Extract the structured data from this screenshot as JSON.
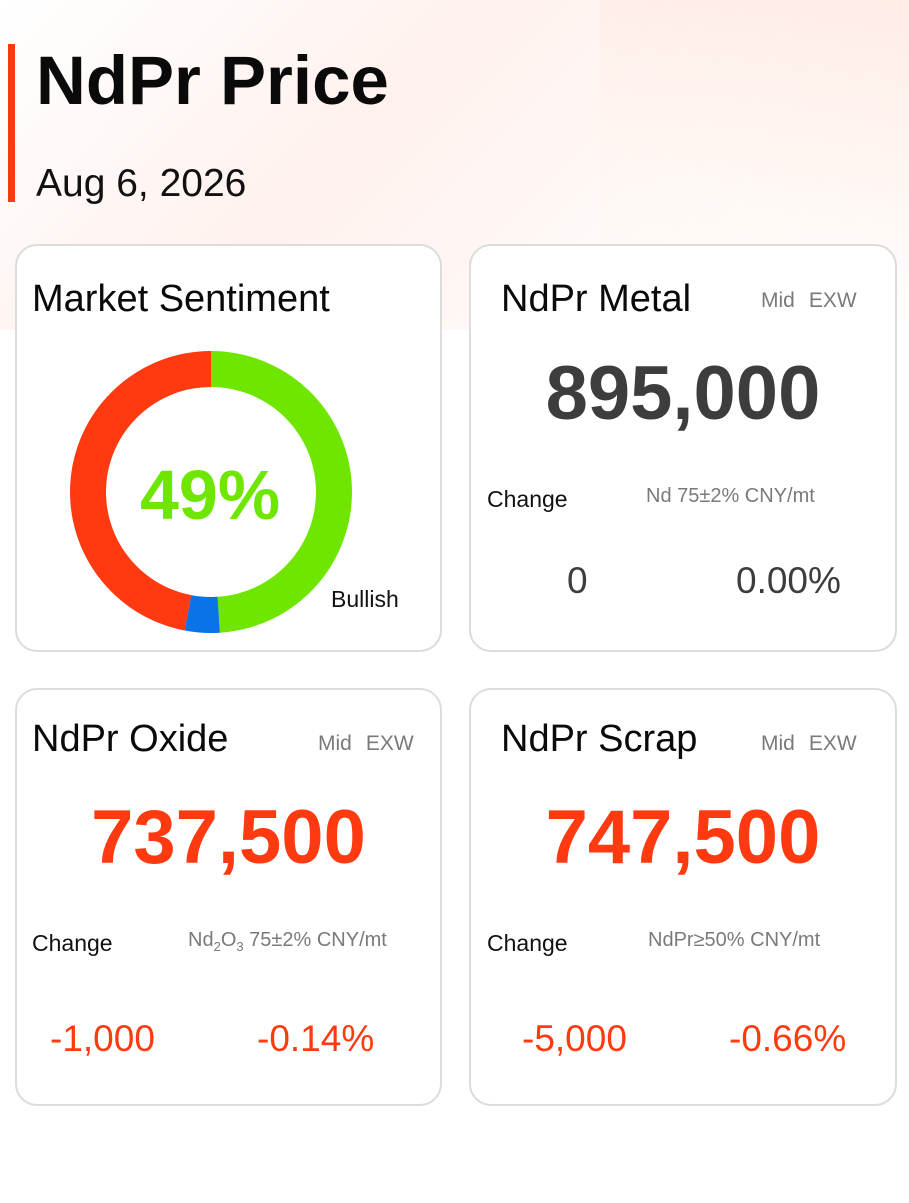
{
  "header": {
    "title": "NdPr Price",
    "date": "Aug 6, 2026"
  },
  "colors": {
    "accent": "#ff3a10",
    "bullish": "#6ee600",
    "bearish": "#ff3a10",
    "neutral": "#0a73e8",
    "card_border": "#dcdcdc"
  },
  "sentiment": {
    "title": "Market Sentiment",
    "percent_label": "49%",
    "label": "Bullish",
    "segments": [
      {
        "name": "bullish",
        "fraction": 0.49,
        "color": "#6ee600"
      },
      {
        "name": "neutral",
        "fraction": 0.04,
        "color": "#0a73e8"
      },
      {
        "name": "bearish",
        "fraction": 0.47,
        "color": "#ff3a10"
      }
    ]
  },
  "metal": {
    "title": "NdPr Metal",
    "mid": "Mid",
    "exw": "EXW",
    "price": "895,000",
    "change_label": "Change",
    "spec": "Nd 75±2% CNY/mt",
    "change_abs": "0",
    "change_pct": "0.00%"
  },
  "oxide": {
    "title": "NdPr Oxide",
    "mid": "Mid",
    "exw": "EXW",
    "price": "737,500",
    "change_label": "Change",
    "spec_prefix": "Nd",
    "spec_sub1": "2",
    "spec_mid": "O",
    "spec_sub2": "3",
    "spec_suffix": " 75±2% CNY/mt",
    "change_abs": "-1,000",
    "change_pct": "-0.14%"
  },
  "scrap": {
    "title": "NdPr Scrap",
    "mid": "Mid",
    "exw": "EXW",
    "price": "747,500",
    "change_label": "Change",
    "spec": "NdPr≥50% CNY/mt",
    "change_abs": "-5,000",
    "change_pct": "-0.66%"
  }
}
